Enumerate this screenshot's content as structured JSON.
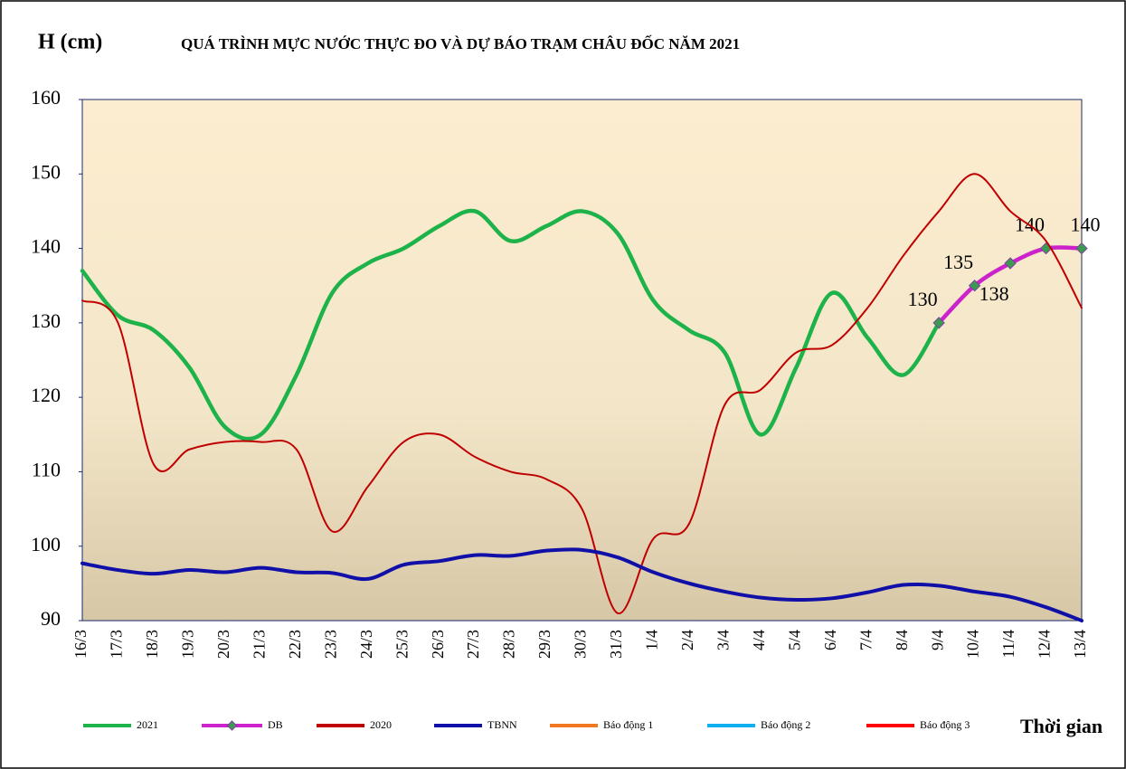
{
  "chart_data": {
    "type": "line",
    "title": "QUÁ TRÌNH MỰC NƯỚC THỰC ĐO VÀ DỰ BÁO TRẠM CHÂU ĐỐC NĂM  2021",
    "y_label": "H (cm)",
    "x_label": "Thời gian",
    "categories": [
      "16/3",
      "17/3",
      "18/3",
      "19/3",
      "20/3",
      "21/3",
      "22/3",
      "23/3",
      "24/3",
      "25/3",
      "26/3",
      "27/3",
      "28/3",
      "29/3",
      "30/3",
      "31/3",
      "1/4",
      "2/4",
      "3/4",
      "4/4",
      "5/4",
      "6/4",
      "7/4",
      "8/4",
      "9/4",
      "10/4",
      "11/4",
      "12/4",
      "13/4"
    ],
    "series": [
      {
        "name": "2021",
        "color": "#1db34a",
        "width": 4.5,
        "values": [
          137,
          131,
          129,
          124,
          116,
          115,
          123,
          134,
          138,
          140,
          143,
          145,
          141,
          143,
          145,
          142,
          133,
          129,
          126,
          115,
          124,
          134,
          128,
          123,
          130,
          null,
          null,
          null,
          null
        ]
      },
      {
        "name": "DB",
        "color": "#cc22cc",
        "width": 4.5,
        "marker": "#3a9a50",
        "values": [
          null,
          null,
          null,
          null,
          null,
          null,
          null,
          null,
          null,
          null,
          null,
          null,
          null,
          null,
          null,
          null,
          null,
          null,
          null,
          null,
          null,
          null,
          null,
          null,
          130,
          135,
          138,
          140,
          140
        ]
      },
      {
        "name": "2020",
        "color": "#c00000",
        "width": 2,
        "values": [
          133,
          130,
          111,
          113,
          114,
          114,
          113,
          102,
          108,
          114,
          115,
          112,
          110,
          109,
          105,
          91,
          101,
          103,
          119,
          121,
          126,
          127,
          132,
          139,
          145,
          150,
          145,
          141,
          132
        ]
      },
      {
        "name": "TBNN",
        "color": "#1010a8",
        "width": 4,
        "values": [
          97.7,
          96.8,
          96.3,
          96.8,
          96.5,
          97.1,
          96.5,
          96.4,
          95.6,
          97.5,
          98.0,
          98.8,
          98.7,
          99.4,
          99.5,
          98.5,
          96.5,
          95.0,
          93.9,
          93.1,
          92.8,
          93.0,
          93.8,
          94.8,
          94.7,
          93.9,
          93.2,
          91.8,
          90
        ]
      },
      {
        "name": "Báo động 1",
        "color": "#f07820",
        "width": 4,
        "values": [
          null,
          null,
          null,
          null,
          null,
          null,
          null,
          null,
          null,
          null,
          null,
          null,
          null,
          null,
          null,
          null,
          null,
          null,
          null,
          null,
          null,
          null,
          null,
          null,
          null,
          null,
          null,
          null,
          null
        ]
      },
      {
        "name": "Báo động 2",
        "color": "#10b0f0",
        "width": 4,
        "values": [
          null,
          null,
          null,
          null,
          null,
          null,
          null,
          null,
          null,
          null,
          null,
          null,
          null,
          null,
          null,
          null,
          null,
          null,
          null,
          null,
          null,
          null,
          null,
          null,
          null,
          null,
          null,
          null,
          null
        ]
      },
      {
        "name": "Báo động 3",
        "color": "#ff0000",
        "width": 4,
        "values": [
          null,
          null,
          null,
          null,
          null,
          null,
          null,
          null,
          null,
          null,
          null,
          null,
          null,
          null,
          null,
          null,
          null,
          null,
          null,
          null,
          null,
          null,
          null,
          null,
          null,
          null,
          null,
          null,
          null
        ]
      }
    ],
    "ylim": [
      90,
      160
    ],
    "yticks": [
      90,
      100,
      110,
      120,
      130,
      140,
      150,
      160
    ],
    "grid": false
  }
}
